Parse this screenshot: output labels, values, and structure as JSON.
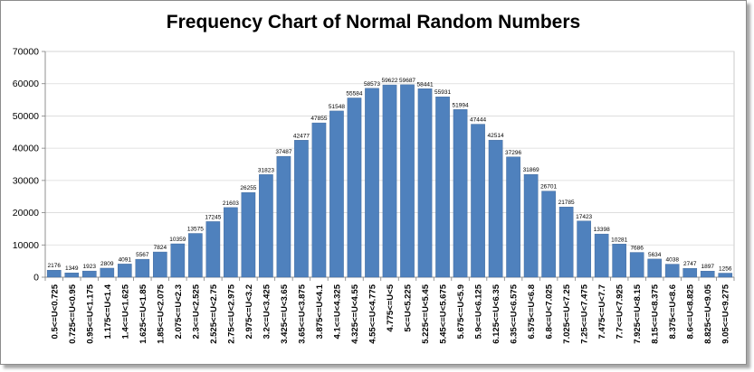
{
  "chart_data": {
    "type": "bar",
    "title": "Frequency Chart of Normal Random Numbers",
    "xlabel": "",
    "ylabel": "",
    "ylim": [
      0,
      70000
    ],
    "yticks": [
      0,
      10000,
      20000,
      30000,
      40000,
      50000,
      60000,
      70000
    ],
    "grid": true,
    "legend": "none",
    "bar_color": "#4f81bd",
    "categories": [
      "0.5<=U<0.725",
      "0.725<=U<0.95",
      "0.95<=U<1.175",
      "1.175<=U<1.4",
      "1.4<=U<1.625",
      "1.625<=U<1.85",
      "1.85<=U<2.075",
      "2.075<=U<2.3",
      "2.3<=U<2.525",
      "2.525<=U<2.75",
      "2.75<=U<2.975",
      "2.975<=U<3.2",
      "3.2<=U<3.425",
      "3.425<=U<3.65",
      "3.65<=U<3.875",
      "3.875<=U<4.1",
      "4.1<=U<4.325",
      "4.325<=U<4.55",
      "4.55<=U<4.775",
      "4.775<=U<5",
      "5<=U<5.225",
      "5.225<=U<5.45",
      "5.45<=U<5.675",
      "5.675<=U<5.9",
      "5.9<=U<6.125",
      "6.125<=U<6.35",
      "6.35<=U<6.575",
      "6.575<=U<6.8",
      "6.8<=U<7.025",
      "7.025<=U<7.25",
      "7.25<=U<7.475",
      "7.475<=U<7.7",
      "7.7<=U<7.925",
      "7.925<=U<8.15",
      "8.15<=U<8.375",
      "8.375<=U<8.6",
      "8.6<=U<8.825",
      "8.825<=U<9.05",
      "9.05<=U<9.275"
    ],
    "values": [
      2176,
      1349,
      1923,
      2809,
      4091,
      5567,
      7824,
      10359,
      13575,
      17245,
      21603,
      26255,
      31823,
      37487,
      42477,
      47855,
      51548,
      55584,
      58573,
      59622,
      59687,
      58441,
      55931,
      51994,
      47444,
      42514,
      37296,
      31869,
      26701,
      21785,
      17423,
      13398,
      10281,
      7686,
      5634,
      4038,
      2747,
      1897,
      1256
    ]
  }
}
